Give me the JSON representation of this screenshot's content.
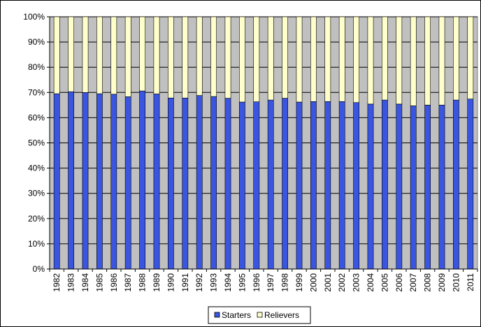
{
  "chart_data": {
    "type": "bar",
    "stacked": true,
    "normalized_percent": true,
    "categories": [
      "1982",
      "1983",
      "1984",
      "1985",
      "1986",
      "1987",
      "1988",
      "1989",
      "1990",
      "1991",
      "1992",
      "1993",
      "1994",
      "1995",
      "1996",
      "1997",
      "1998",
      "1999",
      "2000",
      "2001",
      "2002",
      "2003",
      "2004",
      "2005",
      "2006",
      "2007",
      "2008",
      "2009",
      "2010",
      "2011"
    ],
    "series": [
      {
        "name": "Starters",
        "color": "#3A55E0",
        "values": [
          69.5,
          70.3,
          70.0,
          69.5,
          69.3,
          68.3,
          70.6,
          69.4,
          67.8,
          67.8,
          68.8,
          68.4,
          67.7,
          66.2,
          66.3,
          67.0,
          67.7,
          66.2,
          66.4,
          66.4,
          66.4,
          66.0,
          65.4,
          67.0,
          65.4,
          64.7,
          65.0,
          65.0,
          67.0,
          67.4
        ]
      },
      {
        "name": "Relievers",
        "color": "#FFFFCC",
        "values": [
          30.5,
          29.7,
          30.0,
          30.5,
          30.7,
          31.7,
          29.4,
          30.6,
          32.2,
          32.2,
          31.2,
          31.6,
          32.3,
          33.8,
          33.7,
          33.0,
          32.3,
          33.8,
          33.6,
          33.6,
          33.6,
          34.0,
          34.6,
          33.0,
          34.6,
          35.3,
          35.0,
          35.0,
          33.0,
          32.6
        ]
      }
    ],
    "title": "",
    "xlabel": "",
    "ylabel": "",
    "ylim": [
      0,
      100
    ],
    "y_ticks": [
      "0%",
      "10%",
      "20%",
      "30%",
      "40%",
      "50%",
      "60%",
      "70%",
      "80%",
      "90%",
      "100%"
    ],
    "grid": true,
    "plot_background": "#C0C0C0",
    "legend": "bottom"
  }
}
